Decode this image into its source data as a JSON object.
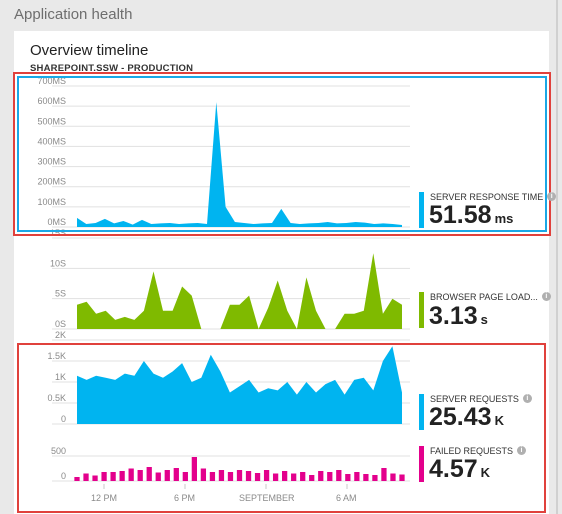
{
  "header": {
    "title": "Application health"
  },
  "card": {
    "title": "Overview timeline",
    "subtitle": "SHAREPOINT.SSW - PRODUCTION"
  },
  "metrics": {
    "server_response": {
      "label": "SERVER RESPONSE TIME",
      "value": "51.58",
      "unit": "ms",
      "color": "#00b4f0"
    },
    "browser_page_load": {
      "label": "BROWSER PAGE LOAD...",
      "value": "3.13",
      "unit": "s",
      "color": "#7fba00"
    },
    "server_requests": {
      "label": "SERVER REQUESTS",
      "value": "25.43",
      "unit": "K",
      "color": "#00b4f0"
    },
    "failed_requests": {
      "label": "FAILED REQUESTS",
      "value": "4.57",
      "unit": "K",
      "color": "#e3008c"
    }
  },
  "x_axis_ticks": [
    "12 PM",
    "6 PM",
    "SEPTEMBER",
    "6 AM"
  ],
  "chart_data": [
    {
      "type": "area",
      "title": "",
      "ylabel": "",
      "yticks": [
        "700MS",
        "600MS",
        "500MS",
        "400MS",
        "300MS",
        "200MS",
        "100MS",
        "0MS"
      ],
      "ylim": [
        0,
        700
      ],
      "series": [
        {
          "color": "#00b4f0",
          "values": [
            45,
            15,
            20,
            40,
            18,
            30,
            12,
            35,
            15,
            18,
            20,
            15,
            18,
            20,
            15,
            620,
            100,
            25,
            20,
            15,
            18,
            20,
            90,
            20,
            15,
            18,
            20,
            25,
            18,
            20,
            25,
            22,
            15,
            18,
            15,
            10
          ]
        }
      ]
    },
    {
      "type": "area",
      "title": "",
      "ylabel": "",
      "yticks": [
        "15S",
        "10S",
        "5S",
        "0S"
      ],
      "ylim": [
        0,
        15
      ],
      "series": [
        {
          "color": "#7fba00",
          "values": [
            4,
            4.5,
            2.5,
            3,
            1.5,
            2,
            1.5,
            3,
            9.5,
            3,
            3,
            7,
            5.5,
            0,
            0,
            0,
            4,
            4,
            5.5,
            0,
            3.5,
            8,
            3,
            0,
            8.5,
            3,
            0,
            0,
            2.5,
            2.5,
            3,
            12.5,
            2.5,
            5,
            4
          ]
        }
      ]
    },
    {
      "type": "area",
      "title": "",
      "ylabel": "",
      "yticks": [
        "2K",
        "1.5K",
        "1K",
        "0.5K",
        "0"
      ],
      "ylim": [
        0,
        2000
      ],
      "series": [
        {
          "color": "#00b4f0",
          "values": [
            1150,
            1050,
            1150,
            1100,
            1050,
            1200,
            1150,
            1500,
            1200,
            1100,
            1250,
            1450,
            1000,
            1100,
            1650,
            1250,
            750,
            900,
            1050,
            750,
            850,
            800,
            1000,
            700,
            1000,
            750,
            950,
            1050,
            700,
            1050,
            1100,
            800,
            1500,
            1850,
            750
          ]
        }
      ]
    },
    {
      "type": "bar",
      "title": "",
      "ylabel": "",
      "yticks": [
        "500",
        "0"
      ],
      "ylim": [
        0,
        700
      ],
      "series": [
        {
          "color": "#e3008c",
          "values": [
            80,
            150,
            110,
            180,
            180,
            200,
            250,
            220,
            280,
            170,
            220,
            260,
            180,
            480,
            250,
            180,
            220,
            180,
            220,
            200,
            160,
            220,
            150,
            200,
            150,
            180,
            120,
            200,
            180,
            220,
            140,
            180,
            140,
            120,
            260,
            150,
            130
          ]
        }
      ]
    }
  ]
}
